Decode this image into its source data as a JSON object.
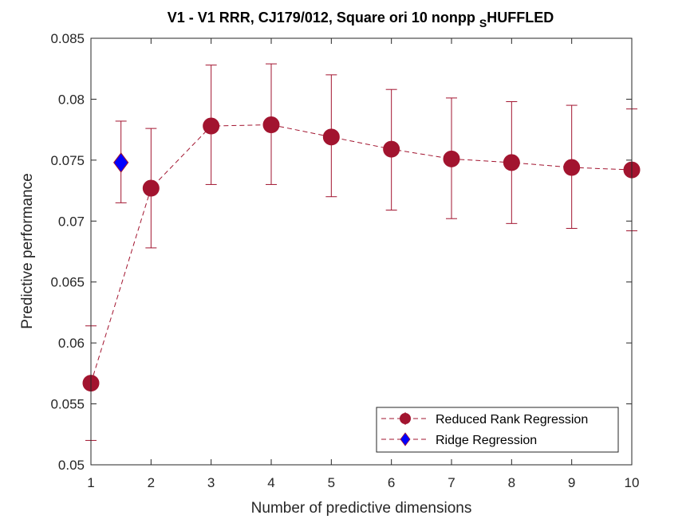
{
  "chart_data": {
    "type": "scatter",
    "title_main": "V1 - V1 RRR, CJ179/012, Square ori 10 nonpp",
    "title_sub": "S",
    "title_tail": "HUFFLED",
    "xlabel": "Number of predictive dimensions",
    "ylabel": "Predictive performance",
    "xlim": [
      1,
      10
    ],
    "ylim": [
      0.05,
      0.085
    ],
    "xticks": [
      1,
      2,
      3,
      4,
      5,
      6,
      7,
      8,
      9,
      10
    ],
    "yticks": [
      0.05,
      0.055,
      0.06,
      0.065,
      0.07,
      0.075,
      0.08,
      0.085
    ],
    "ytick_labels": [
      "0.05",
      "0.055",
      "0.06",
      "0.065",
      "0.07",
      "0.075",
      "0.08",
      "0.085"
    ],
    "grid": false,
    "legend_position": "bottom-right",
    "series": [
      {
        "name": "Reduced Rank Regression",
        "marker": "circle",
        "line": "dashed",
        "color": "#A2142F",
        "x": [
          1,
          2,
          3,
          4,
          5,
          6,
          7,
          8,
          9,
          10
        ],
        "y": [
          0.0567,
          0.0727,
          0.0778,
          0.0779,
          0.0769,
          0.0759,
          0.0751,
          0.0748,
          0.0744,
          0.0742
        ],
        "err_low": [
          0.052,
          0.0678,
          0.073,
          0.073,
          0.072,
          0.0709,
          0.0702,
          0.0698,
          0.0694,
          0.0692
        ],
        "err_high": [
          0.0614,
          0.0776,
          0.0828,
          0.0829,
          0.082,
          0.0808,
          0.0801,
          0.0798,
          0.0795,
          0.0792
        ]
      },
      {
        "name": "Ridge Regression",
        "marker": "diamond",
        "line": "dashed",
        "color": "#0000FF",
        "edge_color": "#A2142F",
        "x": [
          1.5
        ],
        "y": [
          0.0748
        ],
        "err_low": [
          0.0715
        ],
        "err_high": [
          0.0782
        ]
      }
    ]
  }
}
